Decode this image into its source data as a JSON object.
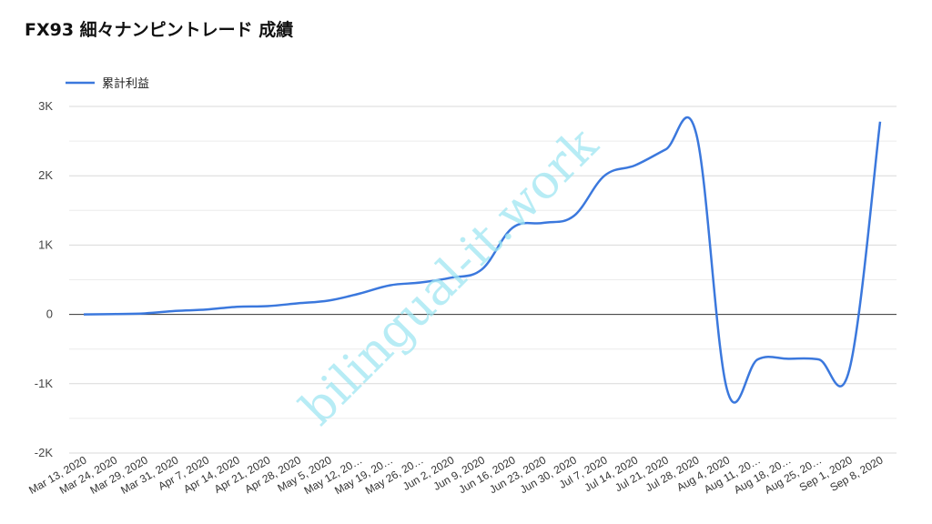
{
  "chart_data": {
    "type": "line",
    "title": "FX93 細々ナンピントレード 成績",
    "xlabel": "",
    "ylabel": "",
    "y_tick_values": [
      3000,
      2000,
      1000,
      0,
      -1000,
      -2000
    ],
    "y_tick_labels": [
      "3K",
      "2K",
      "1K",
      "0",
      "-1K",
      "-2K"
    ],
    "ylim": [
      -2000,
      3000
    ],
    "grid": true,
    "legend_position": "top-left",
    "x_tick_labels": [
      "Mar 13, 2020",
      "Mar 24, 2020",
      "Mar 29, 2020",
      "Mar 31, 2020",
      "Apr 7, 2020",
      "Apr 14, 2020",
      "Apr 21, 2020",
      "Apr 28, 2020",
      "May 5, 2020",
      "May 12, 20…",
      "May 19, 20…",
      "May 26, 20…",
      "Jun 2, 2020",
      "Jun 9, 2020",
      "Jun 16, 2020",
      "Jun 23, 2020",
      "Jun 30, 2020",
      "Jul 7, 2020",
      "Jul 14, 2020",
      "Jul 21, 2020",
      "Jul 28, 2020",
      "Aug 4, 2020",
      "Aug 11, 20…",
      "Aug 18, 20…",
      "Aug 25, 20…",
      "Sep 1, 2020",
      "Sep 8, 2020"
    ],
    "series": [
      {
        "name": "累計利益",
        "color": "#3b78dd",
        "values": [
          0,
          5,
          15,
          50,
          70,
          110,
          120,
          160,
          200,
          300,
          420,
          460,
          530,
          650,
          1250,
          1320,
          1420,
          2000,
          2150,
          2380,
          2600,
          -1080,
          -650,
          -640,
          -650,
          -790,
          2780
        ]
      }
    ]
  },
  "watermark": "bilingual-it.work"
}
